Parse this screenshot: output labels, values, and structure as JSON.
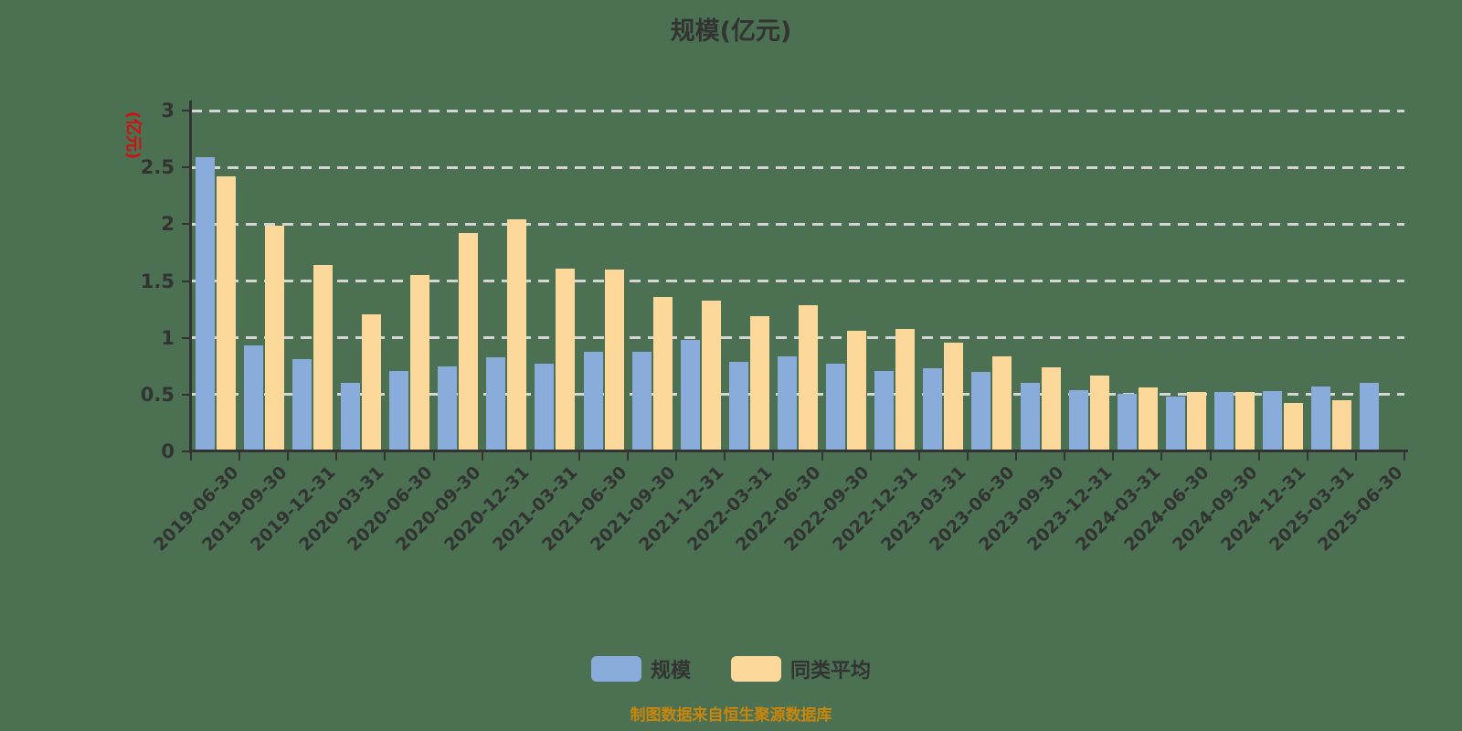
{
  "colors": {
    "background": "#4b7152",
    "title_text": "#333333",
    "axis": "#333333",
    "gridline": "#d5d5d5",
    "y_name_red": "#d30e0e",
    "source_text": "#c8860d",
    "series_scale": "#8aacdb",
    "series_peer_average": "#fcd89b"
  },
  "chart_data": {
    "type": "bar",
    "title": "规模(亿元)",
    "xlabel": "",
    "ylabel": "(亿元)",
    "ylim": [
      0,
      3
    ],
    "yticks": [
      0,
      0.5,
      1,
      1.5,
      2,
      2.5,
      3
    ],
    "grid": "horizontal dashed gridlines on",
    "legend_position": "bottom-center",
    "source_note": "制图数据来自恒生聚源数据库",
    "categories": [
      "2019-06-30",
      "2019-09-30",
      "2019-12-31",
      "2020-03-31",
      "2020-06-30",
      "2020-09-30",
      "2020-12-31",
      "2021-03-31",
      "2021-06-30",
      "2021-09-30",
      "2021-12-31",
      "2022-03-31",
      "2022-06-30",
      "2022-09-30",
      "2022-12-31",
      "2023-03-31",
      "2023-06-30",
      "2023-09-30",
      "2023-12-31",
      "2024-03-31",
      "2024-06-30",
      "2024-09-30",
      "2024-12-31",
      "2025-03-31",
      "2025-06-30"
    ],
    "series": [
      {
        "name": "规模",
        "key": "scale",
        "color": "#8aacdb",
        "values": [
          2.59,
          0.93,
          0.81,
          0.6,
          0.71,
          0.75,
          0.83,
          0.77,
          0.88,
          0.88,
          0.98,
          0.79,
          0.84,
          0.77,
          0.71,
          0.73,
          0.7,
          0.6,
          0.54,
          0.51,
          0.48,
          0.52,
          0.53,
          0.57,
          0.6
        ]
      },
      {
        "name": "同类平均",
        "key": "peer-average",
        "color": "#fcd89b",
        "values": [
          2.42,
          1.99,
          1.64,
          1.21,
          1.55,
          1.92,
          2.04,
          1.61,
          1.6,
          1.36,
          1.33,
          1.19,
          1.29,
          1.06,
          1.08,
          0.96,
          0.84,
          0.74,
          0.67,
          0.56,
          0.52,
          0.52,
          0.43,
          0.45,
          null
        ]
      }
    ]
  }
}
